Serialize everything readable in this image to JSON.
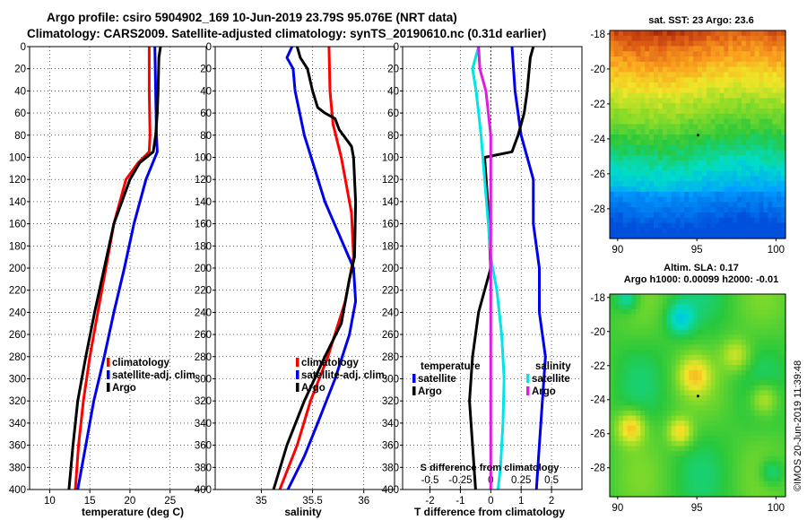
{
  "title": {
    "line1": "Argo profile: csiro 5904902_169 10-Jun-2019 23.79S 95.076E (NRT data)",
    "line2": "Climatology: CARS2009. Satellite-adjusted climatology: synTS_20190610.nc (0.31d earlier)"
  },
  "map_titles": {
    "sst": "sat. SST: 23 Argo: 23.6",
    "sla1": "Altim. SLA: 0.17",
    "sla2": "Argo h1000: 0.00099 h2000: -0.01"
  },
  "credit": "©IMOS 20-Jun-2019 11:39:48",
  "colors": {
    "climatology": "#ff0000",
    "satellite": "#0000ee",
    "argo": "#000000",
    "cyan": "#00e5e5",
    "magenta": "#e01ce0"
  },
  "chart_data": [
    {
      "type": "line",
      "name": "temperature",
      "xlabel": "temperature (deg C)",
      "ylabel": "depth",
      "xlim": [
        7.5,
        29.5
      ],
      "ylim": [
        0,
        400
      ],
      "xticks": [
        10,
        15,
        20,
        25
      ],
      "yticks": [
        0,
        20,
        40,
        60,
        80,
        100,
        120,
        140,
        160,
        180,
        200,
        220,
        240,
        260,
        280,
        300,
        320,
        340,
        360,
        380,
        400
      ],
      "grid": true,
      "legend": [
        "climatology",
        "satellite-adj. clim.",
        "Argo"
      ],
      "series": [
        {
          "name": "climatology",
          "color": "#ff0000",
          "points": [
            [
              22.4,
              0
            ],
            [
              22.4,
              40
            ],
            [
              22.5,
              80
            ],
            [
              22.4,
              95
            ],
            [
              21.0,
              105
            ],
            [
              19.5,
              120
            ],
            [
              18.0,
              160
            ],
            [
              17.0,
              200
            ],
            [
              16.0,
              240
            ],
            [
              15.0,
              280
            ],
            [
              14.2,
              320
            ],
            [
              13.6,
              360
            ],
            [
              13.2,
              400
            ]
          ]
        },
        {
          "name": "satellite-adj. clim.",
          "color": "#0000ee",
          "points": [
            [
              23.1,
              0
            ],
            [
              23.2,
              40
            ],
            [
              23.3,
              80
            ],
            [
              23.4,
              95
            ],
            [
              22.0,
              120
            ],
            [
              20.5,
              160
            ],
            [
              19.3,
              200
            ],
            [
              18.0,
              240
            ],
            [
              16.8,
              280
            ],
            [
              15.5,
              320
            ],
            [
              14.5,
              360
            ],
            [
              13.5,
              400
            ]
          ]
        },
        {
          "name": "Argo",
          "color": "#000000",
          "points": [
            [
              23.8,
              0
            ],
            [
              23.6,
              10
            ],
            [
              23.5,
              40
            ],
            [
              23.4,
              60
            ],
            [
              23.2,
              80
            ],
            [
              22.9,
              95
            ],
            [
              21.2,
              105
            ],
            [
              20.0,
              120
            ],
            [
              18.0,
              160
            ],
            [
              16.8,
              200
            ],
            [
              15.6,
              240
            ],
            [
              14.5,
              280
            ],
            [
              13.5,
              320
            ],
            [
              12.9,
              360
            ],
            [
              12.4,
              400
            ]
          ]
        }
      ]
    },
    {
      "type": "line",
      "name": "salinity",
      "xlabel": "salinity",
      "ylabel": "depth",
      "xlim": [
        34.55,
        36.3
      ],
      "ylim": [
        0,
        400
      ],
      "xticks": [
        35,
        35.5,
        36
      ],
      "xticklabels": [
        "35",
        "35.5",
        "36"
      ],
      "yticks": [
        0,
        20,
        40,
        60,
        80,
        100,
        120,
        140,
        160,
        180,
        200,
        220,
        240,
        260,
        280,
        300,
        320,
        340,
        360,
        380,
        400
      ],
      "grid": true,
      "legend": [
        "climatology",
        "satellite-adj. clim.",
        "Argo"
      ],
      "series": [
        {
          "name": "climatology",
          "color": "#ff0000",
          "points": [
            [
              35.66,
              0
            ],
            [
              35.67,
              40
            ],
            [
              35.7,
              70
            ],
            [
              35.78,
              100
            ],
            [
              35.88,
              150
            ],
            [
              35.9,
              190
            ],
            [
              35.82,
              230
            ],
            [
              35.65,
              280
            ],
            [
              35.48,
              320
            ],
            [
              35.35,
              360
            ],
            [
              35.18,
              400
            ]
          ]
        },
        {
          "name": "satellite-adj. clim.",
          "color": "#0000ee",
          "points": [
            [
              35.3,
              0
            ],
            [
              35.25,
              10
            ],
            [
              35.31,
              20
            ],
            [
              35.33,
              40
            ],
            [
              35.42,
              80
            ],
            [
              35.52,
              110
            ],
            [
              35.62,
              140
            ],
            [
              35.76,
              170
            ],
            [
              35.9,
              200
            ],
            [
              35.92,
              230
            ],
            [
              35.86,
              260
            ],
            [
              35.72,
              300
            ],
            [
              35.55,
              340
            ],
            [
              35.42,
              370
            ],
            [
              35.26,
              400
            ]
          ]
        },
        {
          "name": "Argo",
          "color": "#000000",
          "points": [
            [
              35.35,
              0
            ],
            [
              35.38,
              10
            ],
            [
              35.45,
              20
            ],
            [
              35.5,
              40
            ],
            [
              35.55,
              55
            ],
            [
              35.62,
              60
            ],
            [
              35.72,
              65
            ],
            [
              35.76,
              75
            ],
            [
              35.88,
              90
            ],
            [
              35.9,
              100
            ],
            [
              35.92,
              140
            ],
            [
              35.91,
              190
            ],
            [
              35.86,
              210
            ],
            [
              35.78,
              250
            ],
            [
              35.62,
              280
            ],
            [
              35.42,
              320
            ],
            [
              35.25,
              360
            ],
            [
              35.12,
              400
            ]
          ]
        }
      ]
    },
    {
      "type": "line",
      "name": "difference",
      "xlabel": "T difference from climatology",
      "x2label": "S difference from climatology",
      "ylabel": "depth",
      "xlim": [
        -2.9,
        3.0
      ],
      "x2lim": [
        -0.725,
        0.75
      ],
      "ylim": [
        0,
        400
      ],
      "xticks": [
        -2,
        -1,
        0,
        1,
        2
      ],
      "x2ticks": [
        -0.5,
        -0.25,
        0,
        0.25,
        0.5
      ],
      "x2ticklabels": [
        "-0.5",
        "-0.25",
        "0",
        "0.25",
        "0.5"
      ],
      "yticks": [
        0,
        20,
        40,
        60,
        80,
        100,
        120,
        140,
        160,
        180,
        200,
        220,
        240,
        260,
        280,
        300,
        320,
        340,
        360,
        380,
        400
      ],
      "grid": true,
      "legend_temperature": {
        "header": "temperature",
        "items": [
          "satellite",
          "Argo"
        ]
      },
      "legend_salinity": {
        "header": "salinity",
        "items": [
          "satellite",
          "Argo"
        ]
      },
      "series": [
        {
          "name": "T satellite",
          "color": "#0000ee",
          "points": [
            [
              0.7,
              0
            ],
            [
              0.8,
              40
            ],
            [
              1.0,
              80
            ],
            [
              1.2,
              100
            ],
            [
              1.4,
              120
            ],
            [
              1.4,
              160
            ],
            [
              1.6,
              200
            ],
            [
              1.6,
              240
            ],
            [
              1.8,
              280
            ],
            [
              1.7,
              320
            ],
            [
              1.6,
              360
            ],
            [
              1.5,
              400
            ]
          ]
        },
        {
          "name": "T Argo",
          "color": "#000000",
          "points": [
            [
              1.4,
              0
            ],
            [
              1.3,
              10
            ],
            [
              1.2,
              40
            ],
            [
              1.1,
              60
            ],
            [
              0.9,
              80
            ],
            [
              0.7,
              95
            ],
            [
              -0.2,
              100
            ],
            [
              -0.1,
              140
            ],
            [
              0.0,
              200
            ],
            [
              -0.4,
              240
            ],
            [
              -0.6,
              280
            ],
            [
              -0.7,
              320
            ],
            [
              -0.6,
              360
            ],
            [
              -0.5,
              400
            ]
          ]
        },
        {
          "name": "S satellite",
          "color": "#00e5e5",
          "points": [
            [
              -0.1,
              0
            ],
            [
              -0.15,
              20
            ],
            [
              -0.12,
              40
            ],
            [
              -0.08,
              80
            ],
            [
              -0.05,
              120
            ],
            [
              -0.02,
              160
            ],
            [
              0.0,
              190
            ],
            [
              0.05,
              220
            ],
            [
              0.09,
              260
            ],
            [
              0.11,
              300
            ],
            [
              0.1,
              340
            ],
            [
              0.08,
              380
            ],
            [
              0.06,
              400
            ]
          ]
        },
        {
          "name": "S Argo",
          "color": "#e01ce0",
          "points": [
            [
              -0.1,
              0
            ],
            [
              -0.09,
              20
            ],
            [
              -0.04,
              40
            ],
            [
              -0.02,
              60
            ],
            [
              0.0,
              80
            ],
            [
              0.0,
              100
            ],
            [
              0.0,
              200
            ],
            [
              0.0,
              280
            ],
            [
              0.0,
              320
            ],
            [
              0.0,
              360
            ],
            [
              0.0,
              400
            ]
          ]
        }
      ]
    },
    {
      "type": "heatmap",
      "name": "sst-map",
      "title": "sat. SST: 23 Argo: 23.6",
      "xlim": [
        89.5,
        100.6
      ],
      "ylim": [
        -29.7,
        -17.8
      ],
      "xticks": [
        90,
        95,
        100
      ],
      "yticks": [
        -18,
        -20,
        -22,
        -24,
        -26,
        -28
      ]
    },
    {
      "type": "heatmap",
      "name": "sla-map",
      "title": "Altim. SLA: 0.17",
      "xlim": [
        89.5,
        100.6
      ],
      "ylim": [
        -29.7,
        -17.8
      ],
      "xticks": [
        90,
        95,
        100
      ],
      "yticks": [
        -18,
        -20,
        -22,
        -24,
        -26,
        -28
      ]
    }
  ]
}
